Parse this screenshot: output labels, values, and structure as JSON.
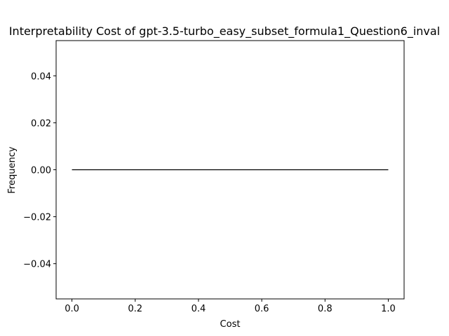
{
  "chart_data": {
    "type": "line",
    "title": "Interpretability Cost of gpt-3.5-turbo_easy_subset_formula1_Question6_inval",
    "xlabel": "Cost",
    "ylabel": "Frequency",
    "xlim": [
      -0.05,
      1.05
    ],
    "ylim": [
      -0.055,
      0.055
    ],
    "xticks": [
      0.0,
      0.2,
      0.4,
      0.6,
      0.8,
      1.0
    ],
    "xtick_labels": [
      "0.0",
      "0.2",
      "0.4",
      "0.6",
      "0.8",
      "1.0"
    ],
    "yticks": [
      -0.04,
      -0.02,
      0.0,
      0.02,
      0.04
    ],
    "ytick_labels": [
      "−0.04",
      "−0.02",
      "0.00",
      "0.02",
      "0.04"
    ],
    "grid": false,
    "series": [
      {
        "x": [
          0.0,
          1.0
        ],
        "y": [
          0.0,
          0.0
        ],
        "color": "#000000"
      }
    ]
  }
}
